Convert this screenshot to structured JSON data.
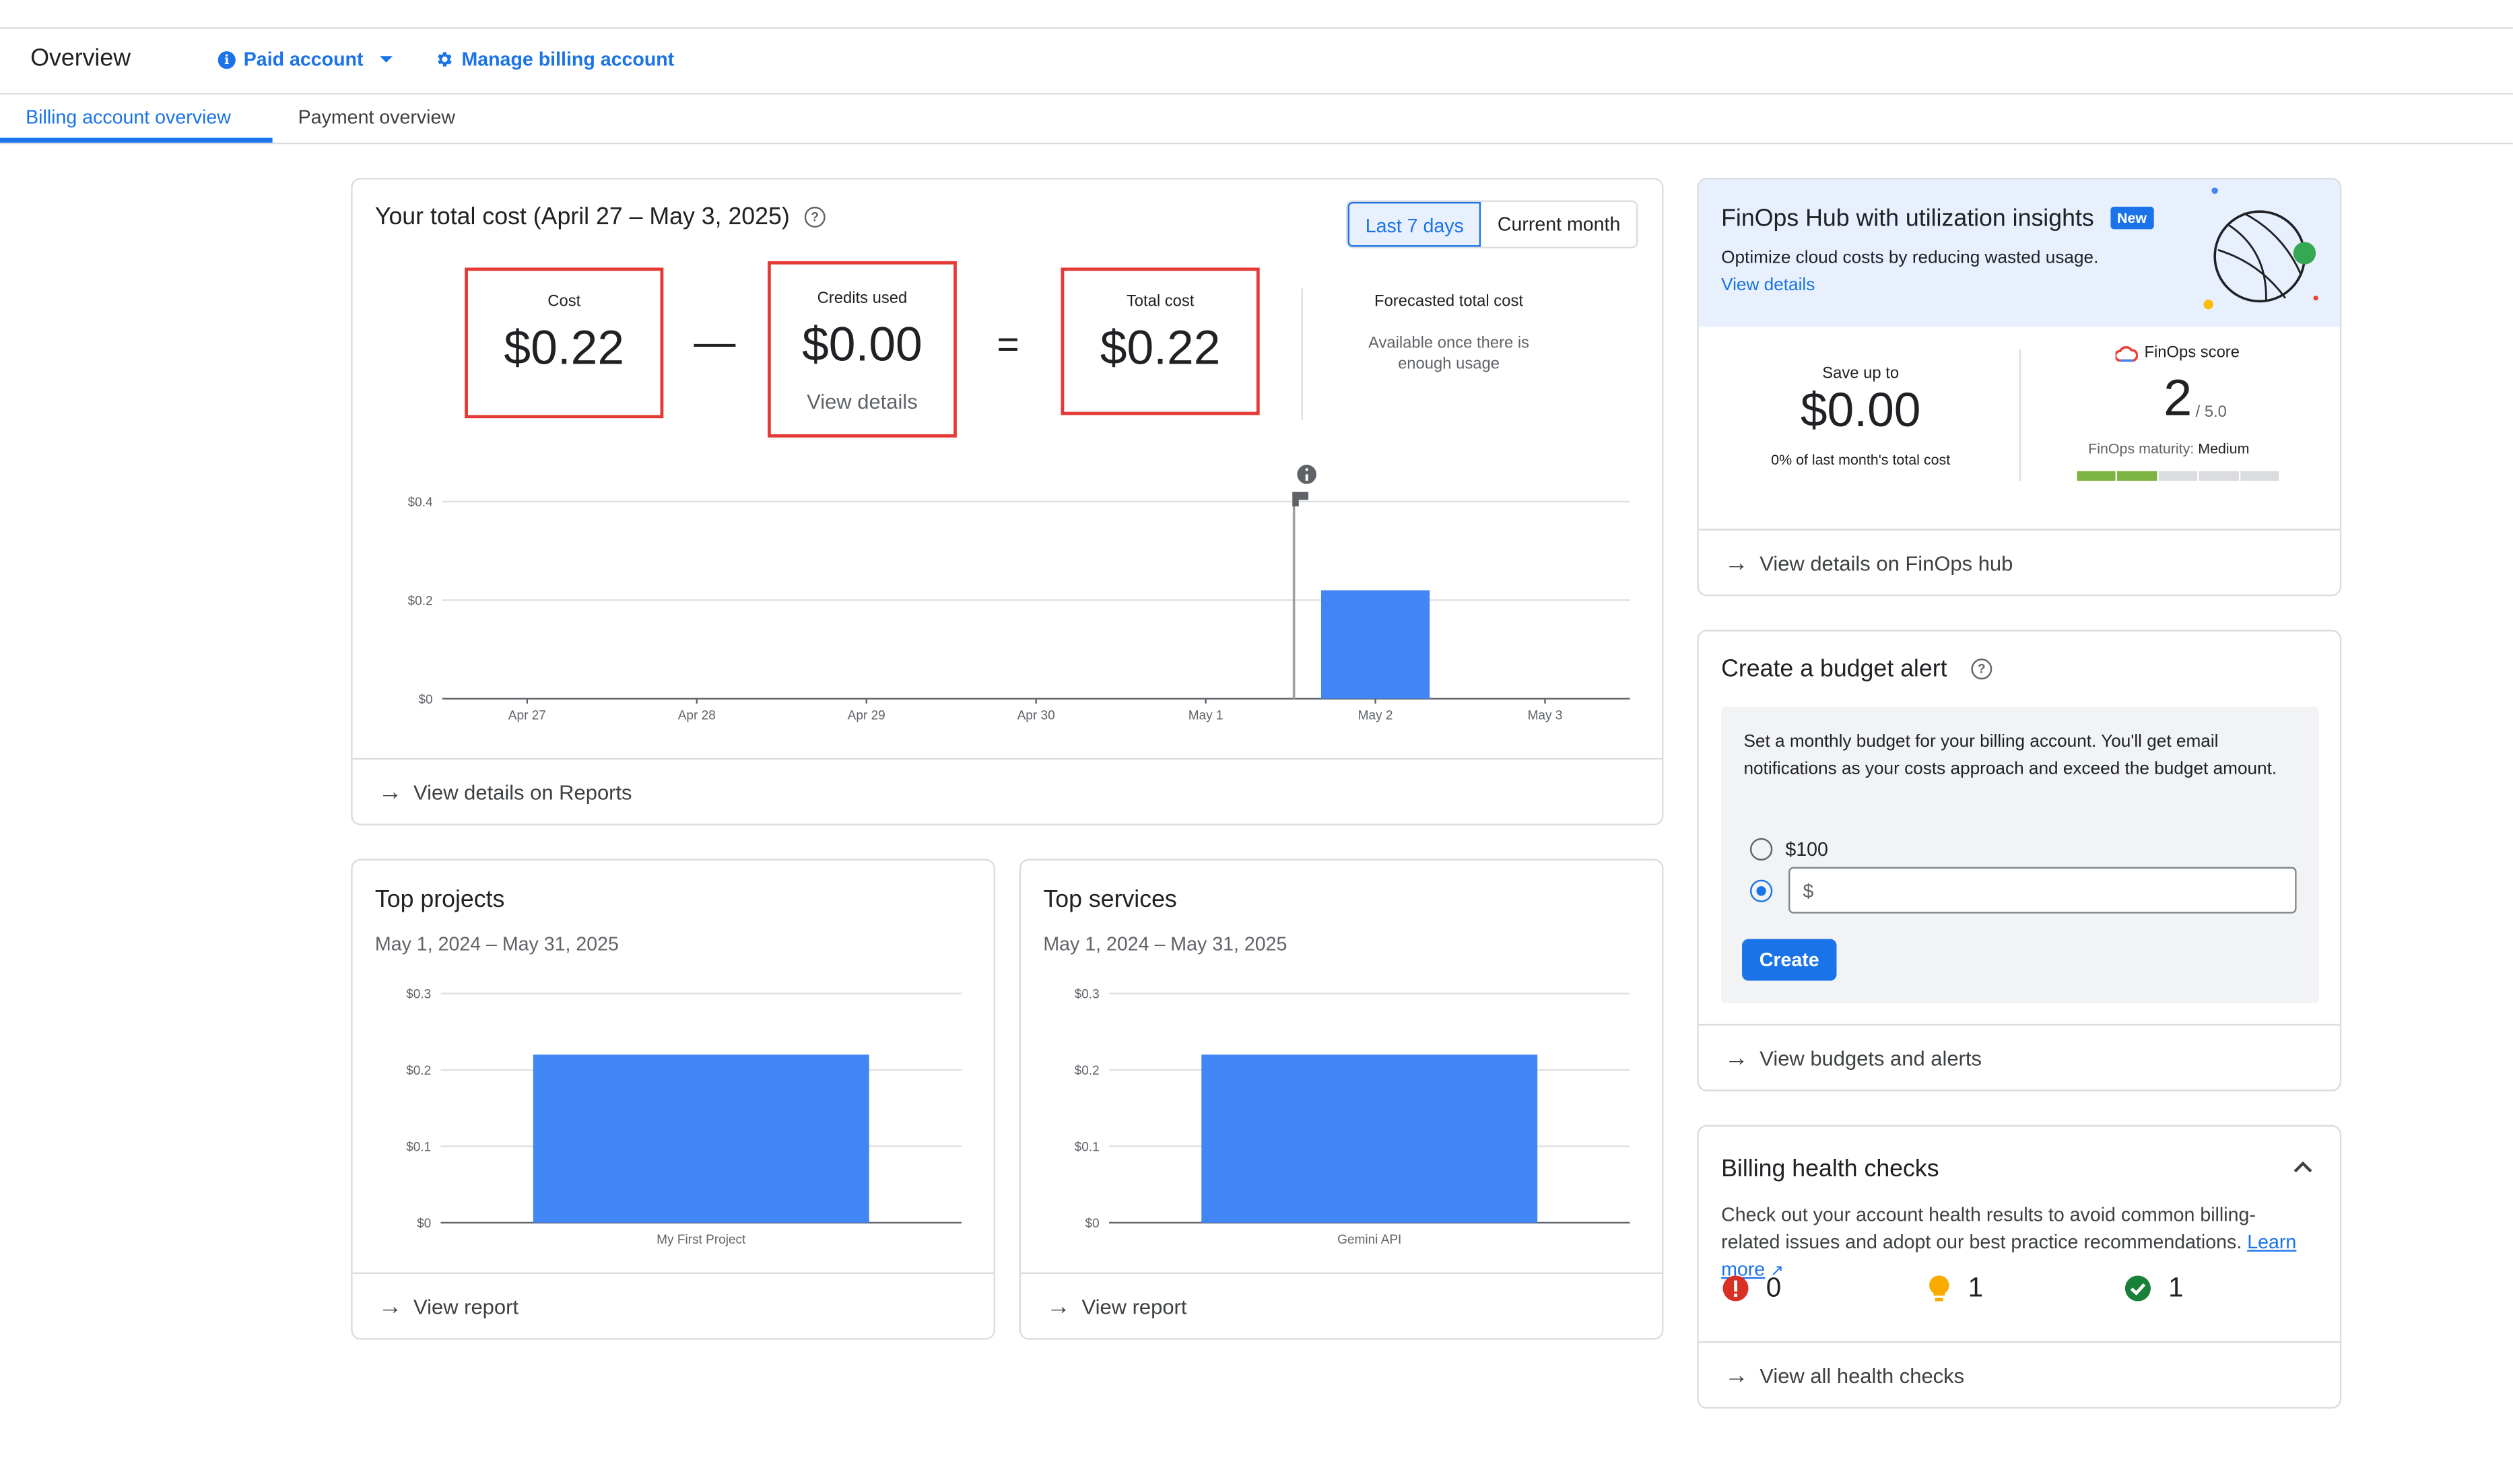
{
  "header": {
    "title": "Overview",
    "paid_account": "Paid account",
    "manage_billing": "Manage billing account",
    "info_glyph": "i"
  },
  "tabs": [
    {
      "label": "Billing account overview",
      "active": true
    },
    {
      "label": "Payment overview",
      "active": false
    }
  ],
  "total_cost": {
    "title": "Your total cost (April 27 – May 3, 2025)",
    "toggle": {
      "option1": "Last 7 days",
      "option2": "Current month"
    },
    "cost_label": "Cost",
    "cost_value": "$0.22",
    "minus": "—",
    "credits_label": "Credits used",
    "credits_value": "$0.00",
    "credits_link": "View details",
    "equals": "=",
    "total_label": "Total cost",
    "total_value": "$0.22",
    "forecast_label": "Forecasted total cost",
    "forecast_note_line1": "Available once there is",
    "forecast_note_line2": "enough usage",
    "footer_link": "View details on Reports"
  },
  "chart_data": [
    {
      "type": "bar",
      "categories": [
        "Apr 27",
        "Apr 28",
        "Apr 29",
        "Apr 30",
        "May 1",
        "May 2",
        "May 3"
      ],
      "values": [
        0,
        0,
        0,
        0,
        0,
        0.22,
        0
      ],
      "ytick_labels": [
        "$0",
        "$0.2",
        "$0.4"
      ],
      "ylim": [
        0,
        0.4
      ],
      "grid": true,
      "marker_between": [
        "May 1",
        "May 2"
      ],
      "color": "#4285f4"
    },
    {
      "type": "bar",
      "categories": [
        "My First Project"
      ],
      "values": [
        0.22
      ],
      "ytick_labels": [
        "$0",
        "$0.1",
        "$0.2",
        "$0.3"
      ],
      "ylim": [
        0,
        0.3
      ],
      "grid": true,
      "color": "#4285f4"
    },
    {
      "type": "bar",
      "categories": [
        "Gemini API"
      ],
      "values": [
        0.22
      ],
      "ytick_labels": [
        "$0",
        "$0.1",
        "$0.2",
        "$0.3"
      ],
      "ylim": [
        0,
        0.3
      ],
      "grid": true,
      "color": "#4285f4"
    }
  ],
  "top_projects": {
    "title": "Top projects",
    "date_range": "May 1, 2024 – May 31, 2025",
    "footer_link": "View report"
  },
  "top_services": {
    "title": "Top services",
    "date_range": "May 1, 2024 – May 31, 2025",
    "footer_link": "View report"
  },
  "finops": {
    "title": "FinOps Hub with utilization insights",
    "badge": "New",
    "desc": "Optimize cloud costs by reducing wasted usage.",
    "link": "View details",
    "save_label": "Save up to",
    "save_value": "$0.00",
    "save_note": "0% of last month's total cost",
    "score_label": "FinOps score",
    "score_value": "2",
    "score_max": "/ 5.0",
    "maturity_label": "FinOps maturity:",
    "maturity_value": "Medium",
    "maturity_level": 2,
    "maturity_segments": 5,
    "footer_link": "View details on FinOps hub"
  },
  "budget": {
    "title": "Create a budget alert",
    "desc": "Set a monthly budget for your billing account. You'll get email notifications as your costs approach and exceed the budget amount.",
    "option1": "$100",
    "input_prefix": "$",
    "create_button": "Create",
    "footer_link": "View budgets and alerts"
  },
  "health": {
    "title": "Billing health checks",
    "desc": "Check out your account health results to avoid common billing-related issues and adopt our best practice recommendations.",
    "learn_more": "Learn more",
    "error_count": "0",
    "warning_count": "1",
    "ok_count": "1",
    "footer_link": "View all health checks"
  },
  "colors": {
    "accent": "#1a73e8",
    "bar": "#4285f4",
    "highlight_box": "#e53935",
    "error": "#d93025",
    "warning": "#f9ab00",
    "ok": "#188038",
    "finops_header_bg": "#e8f0fe",
    "maturity_filled": "#7cb342",
    "maturity_empty": "#dadce0"
  }
}
